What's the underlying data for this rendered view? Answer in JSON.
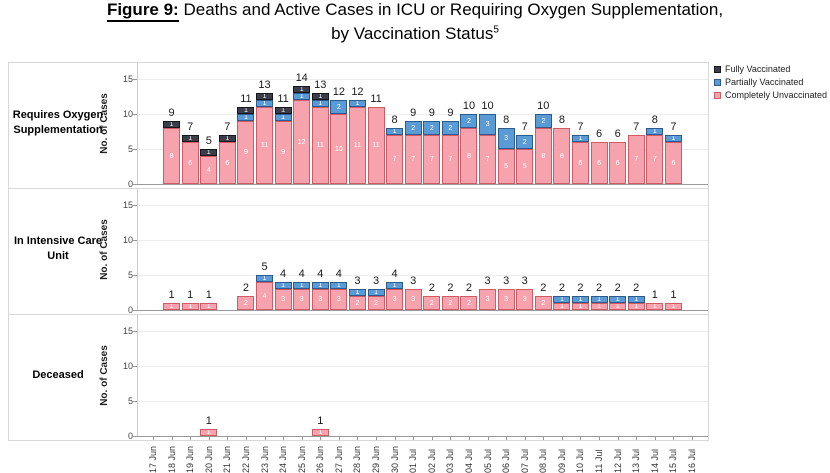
{
  "title": {
    "figure_label": "Figure 9:",
    "line1": "Deaths and Active Cases in ICU or Requiring Oxygen Supplementation,",
    "line2": "by Vaccination Status",
    "footnote_ref": "5"
  },
  "legend": {
    "position": "top-right",
    "items": [
      {
        "label": "Fully Vaccinated",
        "color": "#3b3e48",
        "border": "#15171c"
      },
      {
        "label": "Partially Vaccinated",
        "color": "#5b9bd5",
        "border": "#2e5b8f"
      },
      {
        "label": "Completely Unvaccinated",
        "color": "#f7a3ad",
        "border": "#d05a66"
      }
    ]
  },
  "y_axis": {
    "label": "No. of Cases",
    "ticks": [
      15,
      10,
      5,
      0
    ],
    "max": 15
  },
  "chart_data": [
    {
      "type": "bar",
      "stacked": true,
      "row_label": "Requires Oxygen Supplementation",
      "ylabel": "No. of Cases",
      "ylim": [
        0,
        15
      ],
      "grid": true,
      "legend_position": "top-right",
      "categories": [
        "17 Jun",
        "18 Jun",
        "19 Jun",
        "20 Jun",
        "21 Jun",
        "22 Jun",
        "23 Jun",
        "24 Jun",
        "25 Jun",
        "26 Jun",
        "27 Jun",
        "28 Jun",
        "29 Jun",
        "30 Jun",
        "01 Jul",
        "02 Jul",
        "03 Jul",
        "04 Jul",
        "05 Jul",
        "06 Jul",
        "07 Jul",
        "08 Jul",
        "09 Jul",
        "10 Jul",
        "11 Jul",
        "12 Jul",
        "13 Jul",
        "14 Jul",
        "15 Jul",
        "16 Jul"
      ],
      "series": [
        {
          "name": "Completely Unvaccinated",
          "values": [
            0,
            8,
            6,
            4,
            6,
            9,
            11,
            9,
            12,
            11,
            10,
            11,
            11,
            7,
            7,
            7,
            7,
            8,
            7,
            5,
            5,
            8,
            8,
            6,
            6,
            6,
            7,
            7,
            6,
            0
          ]
        },
        {
          "name": "Partially Vaccinated",
          "values": [
            0,
            0,
            0,
            0,
            0,
            1,
            1,
            1,
            1,
            1,
            2,
            1,
            0,
            1,
            2,
            2,
            2,
            2,
            3,
            3,
            2,
            2,
            0,
            1,
            0,
            0,
            0,
            1,
            1,
            0
          ]
        },
        {
          "name": "Fully Vaccinated",
          "values": [
            0,
            1,
            1,
            1,
            1,
            1,
            1,
            1,
            1,
            1,
            0,
            0,
            0,
            0,
            0,
            0,
            0,
            0,
            0,
            0,
            0,
            0,
            0,
            0,
            0,
            0,
            0,
            0,
            0,
            0
          ]
        }
      ],
      "totals": [
        0,
        9,
        7,
        5,
        7,
        11,
        13,
        11,
        14,
        13,
        12,
        12,
        11,
        8,
        9,
        9,
        9,
        10,
        10,
        8,
        7,
        10,
        8,
        7,
        6,
        6,
        7,
        8,
        7,
        0
      ]
    },
    {
      "type": "bar",
      "stacked": true,
      "row_label": "In Intensive Care Unit",
      "ylabel": "No. of Cases",
      "ylim": [
        0,
        15
      ],
      "grid": true,
      "categories": [
        "17 Jun",
        "18 Jun",
        "19 Jun",
        "20 Jun",
        "21 Jun",
        "22 Jun",
        "23 Jun",
        "24 Jun",
        "25 Jun",
        "26 Jun",
        "27 Jun",
        "28 Jun",
        "29 Jun",
        "30 Jun",
        "01 Jul",
        "02 Jul",
        "03 Jul",
        "04 Jul",
        "05 Jul",
        "06 Jul",
        "07 Jul",
        "08 Jul",
        "09 Jul",
        "10 Jul",
        "11 Jul",
        "12 Jul",
        "13 Jul",
        "14 Jul",
        "15 Jul",
        "16 Jul"
      ],
      "series": [
        {
          "name": "Completely Unvaccinated",
          "values": [
            0,
            1,
            1,
            1,
            0,
            2,
            4,
            3,
            3,
            3,
            3,
            2,
            2,
            3,
            3,
            2,
            2,
            2,
            3,
            3,
            3,
            2,
            1,
            1,
            1,
            1,
            1,
            1,
            1,
            0
          ]
        },
        {
          "name": "Partially Vaccinated",
          "values": [
            0,
            0,
            0,
            0,
            0,
            0,
            1,
            1,
            1,
            1,
            1,
            1,
            1,
            1,
            0,
            0,
            0,
            0,
            0,
            0,
            0,
            0,
            1,
            1,
            1,
            1,
            1,
            0,
            0,
            0
          ]
        },
        {
          "name": "Fully Vaccinated",
          "values": [
            0,
            0,
            0,
            0,
            0,
            0,
            0,
            0,
            0,
            0,
            0,
            0,
            0,
            0,
            0,
            0,
            0,
            0,
            0,
            0,
            0,
            0,
            0,
            0,
            0,
            0,
            0,
            0,
            0,
            0
          ]
        }
      ],
      "totals": [
        0,
        1,
        1,
        1,
        0,
        2,
        5,
        4,
        4,
        4,
        4,
        3,
        3,
        4,
        3,
        2,
        2,
        2,
        3,
        3,
        3,
        2,
        2,
        2,
        2,
        2,
        2,
        1,
        1,
        0
      ]
    },
    {
      "type": "bar",
      "stacked": true,
      "row_label": "Deceased",
      "ylabel": "No. of Cases",
      "ylim": [
        0,
        15
      ],
      "grid": true,
      "categories": [
        "17 Jun",
        "18 Jun",
        "19 Jun",
        "20 Jun",
        "21 Jun",
        "22 Jun",
        "23 Jun",
        "24 Jun",
        "25 Jun",
        "26 Jun",
        "27 Jun",
        "28 Jun",
        "29 Jun",
        "30 Jun",
        "01 Jul",
        "02 Jul",
        "03 Jul",
        "04 Jul",
        "05 Jul",
        "06 Jul",
        "07 Jul",
        "08 Jul",
        "09 Jul",
        "10 Jul",
        "11 Jul",
        "12 Jul",
        "13 Jul",
        "14 Jul",
        "15 Jul",
        "16 Jul"
      ],
      "series": [
        {
          "name": "Completely Unvaccinated",
          "values": [
            0,
            0,
            0,
            1,
            0,
            0,
            0,
            0,
            0,
            1,
            0,
            0,
            0,
            0,
            0,
            0,
            0,
            0,
            0,
            0,
            0,
            0,
            0,
            0,
            0,
            0,
            0,
            0,
            0,
            0
          ]
        },
        {
          "name": "Partially Vaccinated",
          "values": [
            0,
            0,
            0,
            0,
            0,
            0,
            0,
            0,
            0,
            0,
            0,
            0,
            0,
            0,
            0,
            0,
            0,
            0,
            0,
            0,
            0,
            0,
            0,
            0,
            0,
            0,
            0,
            0,
            0,
            0
          ]
        },
        {
          "name": "Fully Vaccinated",
          "values": [
            0,
            0,
            0,
            0,
            0,
            0,
            0,
            0,
            0,
            0,
            0,
            0,
            0,
            0,
            0,
            0,
            0,
            0,
            0,
            0,
            0,
            0,
            0,
            0,
            0,
            0,
            0,
            0,
            0,
            0
          ]
        }
      ],
      "totals": [
        0,
        0,
        0,
        1,
        0,
        0,
        0,
        0,
        0,
        1,
        0,
        0,
        0,
        0,
        0,
        0,
        0,
        0,
        0,
        0,
        0,
        0,
        0,
        0,
        0,
        0,
        0,
        0,
        0,
        0
      ]
    }
  ]
}
